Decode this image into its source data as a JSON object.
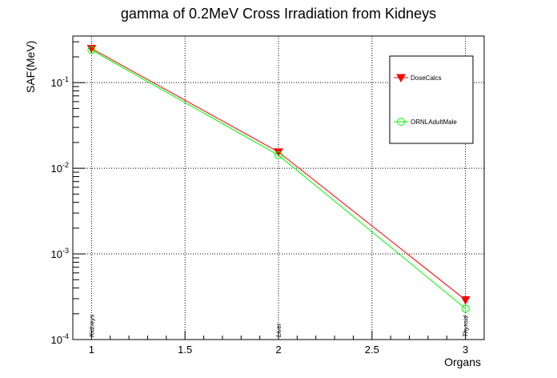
{
  "chart_data": {
    "type": "line",
    "title": "gamma of 0.2MeV Cross Irradiation from Kidneys",
    "xlabel": "Organs",
    "ylabel": "SAF(MeV)",
    "yscale": "log",
    "xlim": [
      0.9,
      3.1
    ],
    "ylim": [
      0.0001,
      0.35
    ],
    "grid": true,
    "legend_position": "top-right",
    "x_ticks": [
      {
        "value": 1,
        "label": "1"
      },
      {
        "value": 1.5,
        "label": "1.5"
      },
      {
        "value": 2,
        "label": "2"
      },
      {
        "value": 2.5,
        "label": "2.5"
      },
      {
        "value": 3,
        "label": "3"
      }
    ],
    "y_ticks": [
      {
        "value": 0.0001,
        "base": "10",
        "exp": "-4"
      },
      {
        "value": 0.001,
        "base": "10",
        "exp": "-3"
      },
      {
        "value": 0.01,
        "base": "10",
        "exp": "-2"
      },
      {
        "value": 0.1,
        "base": "10",
        "exp": "-1"
      }
    ],
    "categories": [
      {
        "x": 1,
        "label": "Kidneys"
      },
      {
        "x": 2,
        "label": "Liver"
      },
      {
        "x": 3,
        "label": "Thyroid"
      }
    ],
    "series": [
      {
        "name": "DoseCalcs",
        "x": [
          1,
          2,
          3
        ],
        "values": [
          0.25,
          0.0155,
          0.00029
        ],
        "color": "#ff0000",
        "marker": "triangle-down-filled"
      },
      {
        "name": "ORNLAdultMale",
        "x": [
          1,
          2,
          3
        ],
        "values": [
          0.24,
          0.0142,
          0.00023
        ],
        "color": "#00ff00",
        "marker": "circle-open"
      }
    ]
  }
}
